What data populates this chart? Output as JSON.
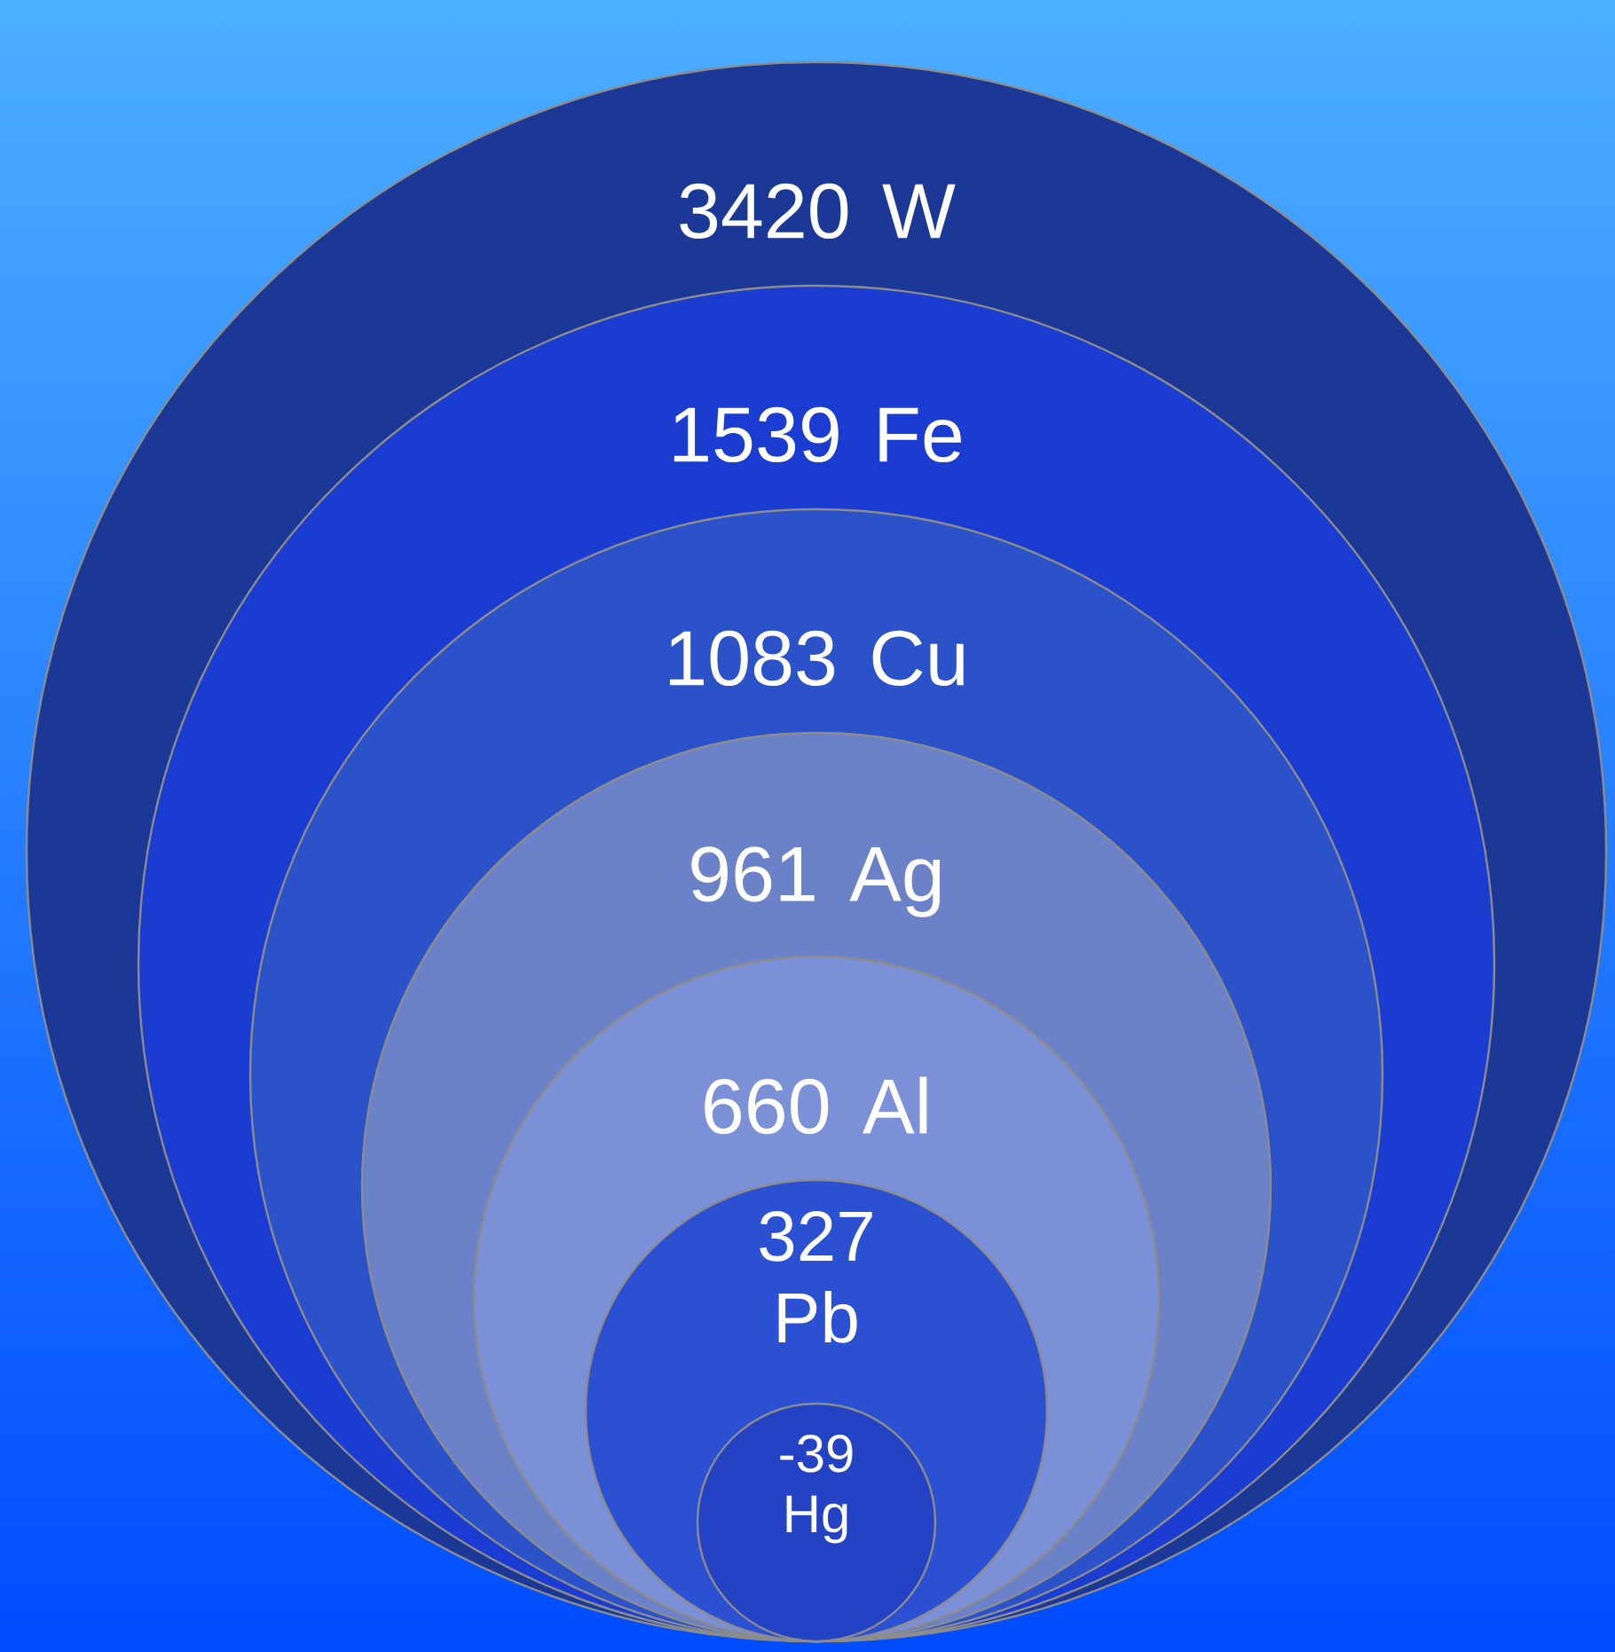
{
  "chart_data": {
    "type": "other",
    "categories": [
      "W",
      "Fe",
      "Cu",
      "Ag",
      "Al",
      "Pb",
      "Hg"
    ],
    "values": [
      3420,
      1539,
      1083,
      961,
      660,
      327,
      -39
    ],
    "colors": [
      "#1b3896",
      "#1b3cd0",
      "#2b52c8",
      "#6c82c8",
      "#7b90d6",
      "#2c50d2",
      "#2443c4"
    ],
    "data_labels": true
  }
}
